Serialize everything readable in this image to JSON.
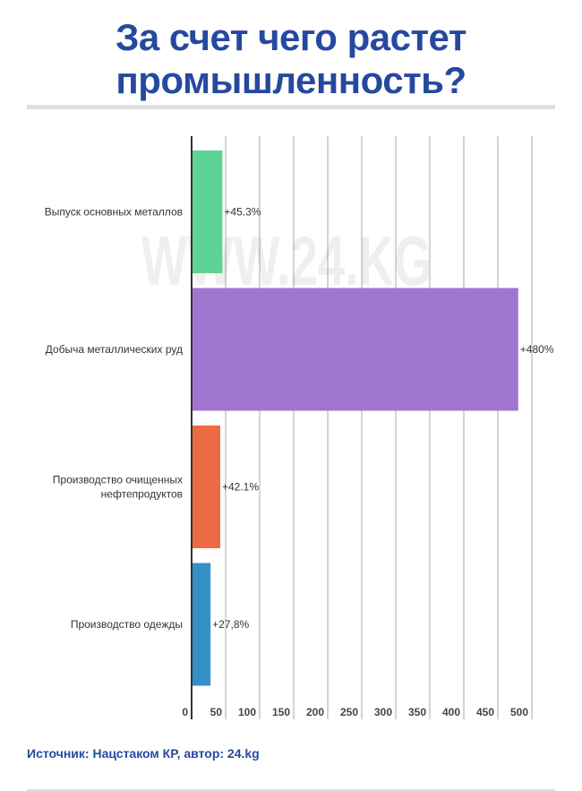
{
  "title_lines": [
    "За счет чего растет",
    "промышленность?"
  ],
  "watermark": "WWW.24.KG",
  "source": "Источник: Нацстаком КР, автор: 24.kg",
  "chart_data": {
    "type": "bar",
    "orientation": "horizontal",
    "title": "За счет чего растет промышленность?",
    "categories": [
      [
        "Выпуск основных металлов"
      ],
      [
        "Добыча металлических руд"
      ],
      [
        "Производство очищенных",
        "нефтепродуктов"
      ],
      [
        "Производство одежды"
      ]
    ],
    "values": [
      45.3,
      480,
      42.1,
      27.8
    ],
    "data_labels": [
      "+45.3%",
      "+480%",
      "+42.1%",
      "+27,8%"
    ],
    "colors": [
      "#5ed394",
      "#a075cf",
      "#ec6b43",
      "#3490c6"
    ],
    "xlim": [
      0,
      500
    ],
    "xticks": [
      0,
      50,
      100,
      150,
      200,
      250,
      300,
      350,
      400,
      450,
      500
    ],
    "grid": true
  }
}
